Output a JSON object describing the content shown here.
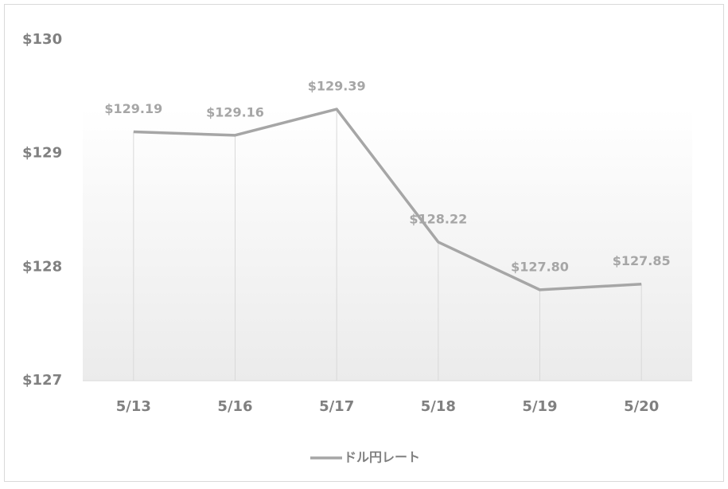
{
  "chart_data": {
    "type": "line",
    "categories": [
      "5/13",
      "5/16",
      "5/17",
      "5/18",
      "5/19",
      "5/20"
    ],
    "series": [
      {
        "name": "ドル円レート",
        "color": "#a6a6a6",
        "values": [
          129.19,
          129.16,
          129.39,
          128.22,
          127.8,
          127.85
        ],
        "value_labels": [
          "$129.19",
          "$129.16",
          "$129.39",
          "$128.22",
          "$127.80",
          "$127.85"
        ]
      }
    ],
    "ylim": [
      127,
      130
    ],
    "yticks": [
      {
        "value": 127,
        "label": "$127"
      },
      {
        "value": 128,
        "label": "$128"
      },
      {
        "value": 129,
        "label": "$129"
      },
      {
        "value": 130,
        "label": "$130"
      }
    ],
    "drop_lines": true,
    "grid": false,
    "legend": "bottom"
  }
}
